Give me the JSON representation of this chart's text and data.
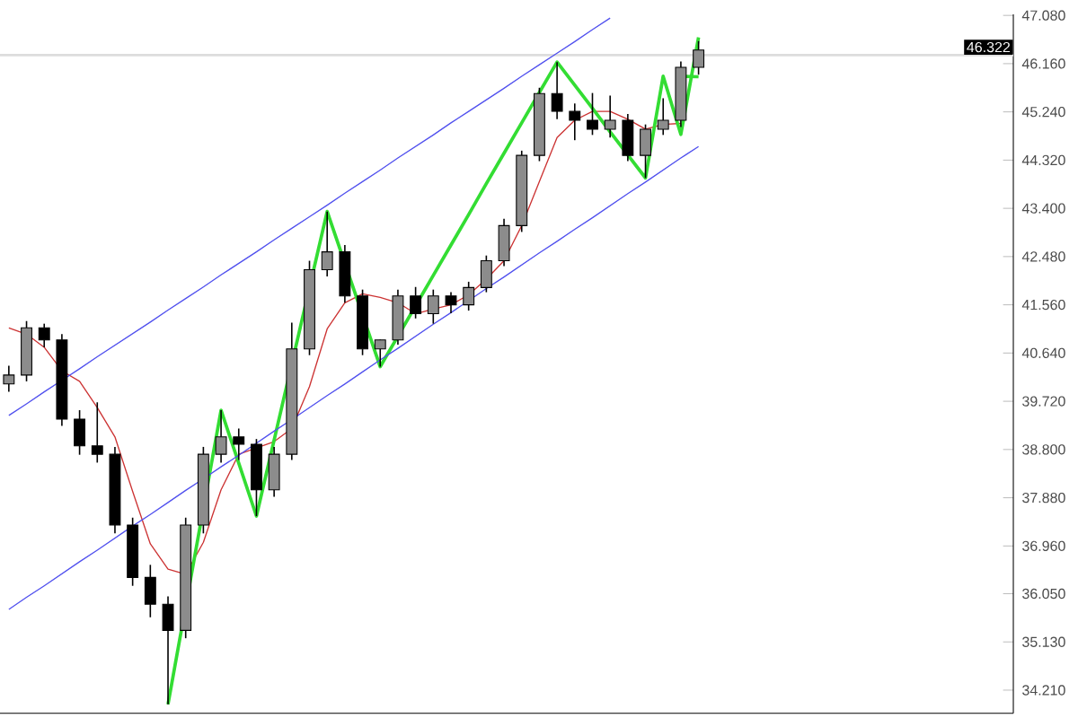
{
  "chart_data": {
    "type": "candlestick",
    "color": "#000000",
    "categories": [
      null,
      null,
      null,
      null,
      null,
      null,
      null,
      null,
      null,
      null,
      null,
      null,
      null,
      null,
      null,
      null,
      null,
      null,
      null,
      null,
      null,
      null,
      null,
      null,
      null,
      null,
      null,
      null,
      null,
      null,
      null,
      null,
      null,
      null,
      null,
      null,
      null,
      null,
      null,
      null
    ],
    "ohlc": [
      [
        40.05,
        40.4,
        39.9,
        40.22
      ],
      [
        40.22,
        41.25,
        40.1,
        41.12
      ],
      [
        41.12,
        41.2,
        40.75,
        40.89
      ],
      [
        40.89,
        41.0,
        39.25,
        39.38
      ],
      [
        39.38,
        39.55,
        38.7,
        38.87
      ],
      [
        38.87,
        39.7,
        38.55,
        38.71
      ],
      [
        38.71,
        38.85,
        37.2,
        37.36
      ],
      [
        37.36,
        37.5,
        36.2,
        36.36
      ],
      [
        36.36,
        36.6,
        35.6,
        35.85
      ],
      [
        35.85,
        36.0,
        33.94,
        35.35
      ],
      [
        35.35,
        37.5,
        35.2,
        37.36
      ],
      [
        37.36,
        38.85,
        37.2,
        38.71
      ],
      [
        38.71,
        39.55,
        38.55,
        39.04
      ],
      [
        39.04,
        39.2,
        38.6,
        38.9
      ],
      [
        38.9,
        39.0,
        37.53,
        38.03
      ],
      [
        38.03,
        38.85,
        37.9,
        38.71
      ],
      [
        38.71,
        41.22,
        38.6,
        40.72
      ],
      [
        40.72,
        42.4,
        40.6,
        42.23
      ],
      [
        42.23,
        43.34,
        42.1,
        42.57
      ],
      [
        42.57,
        42.7,
        41.6,
        41.73
      ],
      [
        41.73,
        41.85,
        40.6,
        40.72
      ],
      [
        40.72,
        40.9,
        40.38,
        40.89
      ],
      [
        40.89,
        41.85,
        40.8,
        41.73
      ],
      [
        41.73,
        41.9,
        41.3,
        41.39
      ],
      [
        41.39,
        41.85,
        41.2,
        41.73
      ],
      [
        41.73,
        41.8,
        41.4,
        41.56
      ],
      [
        41.56,
        42.0,
        41.45,
        41.89
      ],
      [
        41.89,
        42.5,
        41.8,
        42.4
      ],
      [
        42.4,
        43.2,
        42.3,
        43.07
      ],
      [
        43.07,
        44.5,
        42.95,
        44.41
      ],
      [
        44.41,
        45.7,
        44.3,
        45.59
      ],
      [
        45.59,
        46.19,
        45.1,
        45.25
      ],
      [
        45.25,
        45.4,
        44.7,
        45.08
      ],
      [
        45.08,
        45.6,
        44.8,
        44.91
      ],
      [
        44.91,
        45.55,
        44.75,
        45.08
      ],
      [
        45.08,
        45.2,
        44.3,
        44.41
      ],
      [
        44.41,
        45.0,
        43.98,
        44.91
      ],
      [
        44.91,
        45.5,
        44.8,
        45.08
      ],
      [
        45.08,
        46.2,
        44.95,
        46.09
      ],
      [
        46.09,
        46.59,
        45.95,
        46.42
      ]
    ],
    "series": [
      {
        "type": "line",
        "color": "#cc3333",
        "values": [
          41.12,
          41.0,
          40.75,
          40.3,
          40.1,
          39.6,
          39.04,
          38.0,
          37.0,
          36.52,
          36.42,
          37.03,
          38.03,
          38.71,
          38.83,
          38.95,
          39.2,
          40.0,
          41.1,
          41.6,
          41.77,
          41.7,
          41.6,
          41.39,
          41.48,
          41.56,
          41.75,
          42.05,
          42.4,
          43.07,
          43.91,
          44.75,
          45.08,
          45.25,
          45.25,
          45.1,
          44.91,
          45.0,
          45.02,
          null
        ]
      },
      {
        "type": "line",
        "color": "#33dd33",
        "values": [
          null,
          null,
          null,
          null,
          null,
          null,
          null,
          null,
          null,
          33.94,
          null,
          null,
          39.55,
          38.54,
          37.53,
          38.98,
          null,
          null,
          43.34,
          null,
          null,
          40.38,
          40.96,
          41.54,
          42.12,
          42.7,
          43.28,
          43.87,
          44.45,
          45.03,
          45.61,
          46.19,
          45.75,
          45.31,
          44.86,
          44.42,
          43.98,
          45.92,
          44.81,
          46.66
        ]
      },
      {
        "type": "line",
        "color": "#33dd33",
        "values": [
          null,
          null,
          null,
          null,
          null,
          null,
          null,
          null,
          null,
          null,
          null,
          null,
          null,
          null,
          null,
          null,
          null,
          null,
          null,
          null,
          null,
          null,
          null,
          null,
          null,
          null,
          null,
          null,
          null,
          null,
          null,
          null,
          null,
          null,
          null,
          null,
          null,
          null,
          45.92,
          45.91
        ]
      },
      {
        "type": "line",
        "color": "#5050ee",
        "values": [
          35.75,
          35.98,
          36.2,
          36.43,
          36.66,
          36.88,
          37.11,
          37.34,
          37.56,
          37.79,
          38.02,
          38.24,
          38.47,
          38.69,
          38.92,
          39.15,
          39.37,
          39.6,
          39.83,
          40.05,
          40.28,
          40.51,
          40.73,
          40.96,
          41.19,
          41.41,
          41.64,
          41.87,
          42.09,
          42.32,
          42.55,
          42.77,
          43.0,
          43.22,
          43.45,
          43.68,
          43.9,
          44.13,
          44.36,
          44.58
        ]
      },
      {
        "type": "line",
        "color": "#5050ee",
        "values": [
          39.45,
          39.67,
          39.9,
          40.12,
          40.34,
          40.57,
          40.79,
          41.01,
          41.23,
          41.46,
          41.68,
          41.9,
          42.13,
          42.35,
          42.57,
          42.8,
          43.02,
          43.24,
          43.46,
          43.69,
          43.91,
          44.13,
          44.36,
          44.58,
          44.8,
          45.03,
          45.25,
          45.47,
          45.69,
          45.92,
          46.14,
          46.36,
          46.58,
          46.81,
          47.03,
          null,
          null,
          null,
          null,
          null
        ]
      }
    ],
    "ylim": [
      33.77,
      47.1
    ],
    "yticks": [
      {
        "value": 34.21,
        "label": "34.210"
      },
      {
        "value": 35.13,
        "label": "35.130"
      },
      {
        "value": 36.05,
        "label": "36.050"
      },
      {
        "value": 36.96,
        "label": "36.960"
      },
      {
        "value": 37.88,
        "label": "37.880"
      },
      {
        "value": 38.8,
        "label": "38.800"
      },
      {
        "value": 39.72,
        "label": "39.720"
      },
      {
        "value": 40.64,
        "label": "40.640"
      },
      {
        "value": 41.56,
        "label": "41.560"
      },
      {
        "value": 42.48,
        "label": "42.480"
      },
      {
        "value": 43.4,
        "label": "43.400"
      },
      {
        "value": 44.32,
        "label": "44.320"
      },
      {
        "value": 45.24,
        "label": "45.240"
      },
      {
        "value": 46.16,
        "label": "46.160"
      },
      {
        "value": 47.08,
        "label": "47.080"
      }
    ],
    "ref_lines": [
      {
        "axis": "y",
        "value": 46.322,
        "label": "46.322",
        "color": "#dddddd"
      }
    ],
    "tick_labels": "y"
  }
}
